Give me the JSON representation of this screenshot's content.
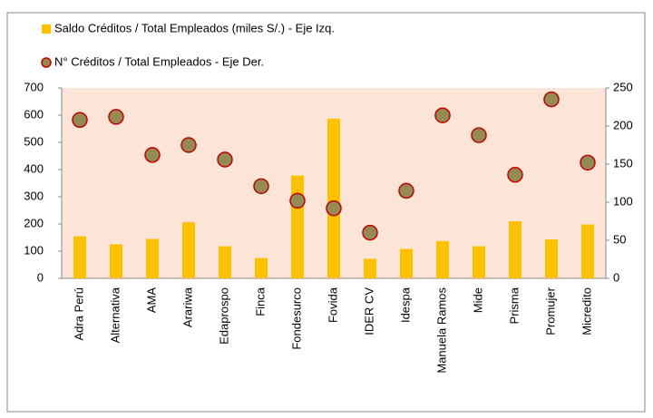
{
  "chart_data": {
    "type": "bar_scatter",
    "categories": [
      "Adra Perú",
      "Alternativa",
      "AMA",
      "Arariwa",
      "Edaprospo",
      "Finca",
      "Fondesurco",
      "Fovida",
      "IDER CV",
      "Idespa",
      "Manuela Ramos",
      "Mide",
      "Prisma",
      "Promujer",
      "Micredito"
    ],
    "series": [
      {
        "name": "Saldo Créditos / Total Empleados (miles S/.) - Eje Izq.",
        "color": "#ffc000",
        "kind": "bar",
        "values": [
          155,
          125,
          145,
          207,
          118,
          75,
          378,
          587,
          72,
          108,
          137,
          118,
          210,
          143,
          198
        ]
      },
      {
        "name": "N° Créditos / Total Empleados - Eje Der.",
        "color": "#948a54",
        "edgecolor": "#c00000",
        "kind": "scatter",
        "axis": "y2",
        "values": [
          208,
          212,
          162,
          175,
          156,
          121,
          102,
          92,
          60,
          115,
          214,
          188,
          136,
          235,
          152
        ]
      }
    ],
    "ylim": [
      0,
      700
    ],
    "yticks": [
      0,
      100,
      200,
      300,
      400,
      500,
      600,
      700
    ],
    "y2lim": [
      0,
      250
    ],
    "y2ticks": [
      0,
      50,
      100,
      150,
      200,
      250
    ],
    "plot_background": "#fce4d6"
  }
}
